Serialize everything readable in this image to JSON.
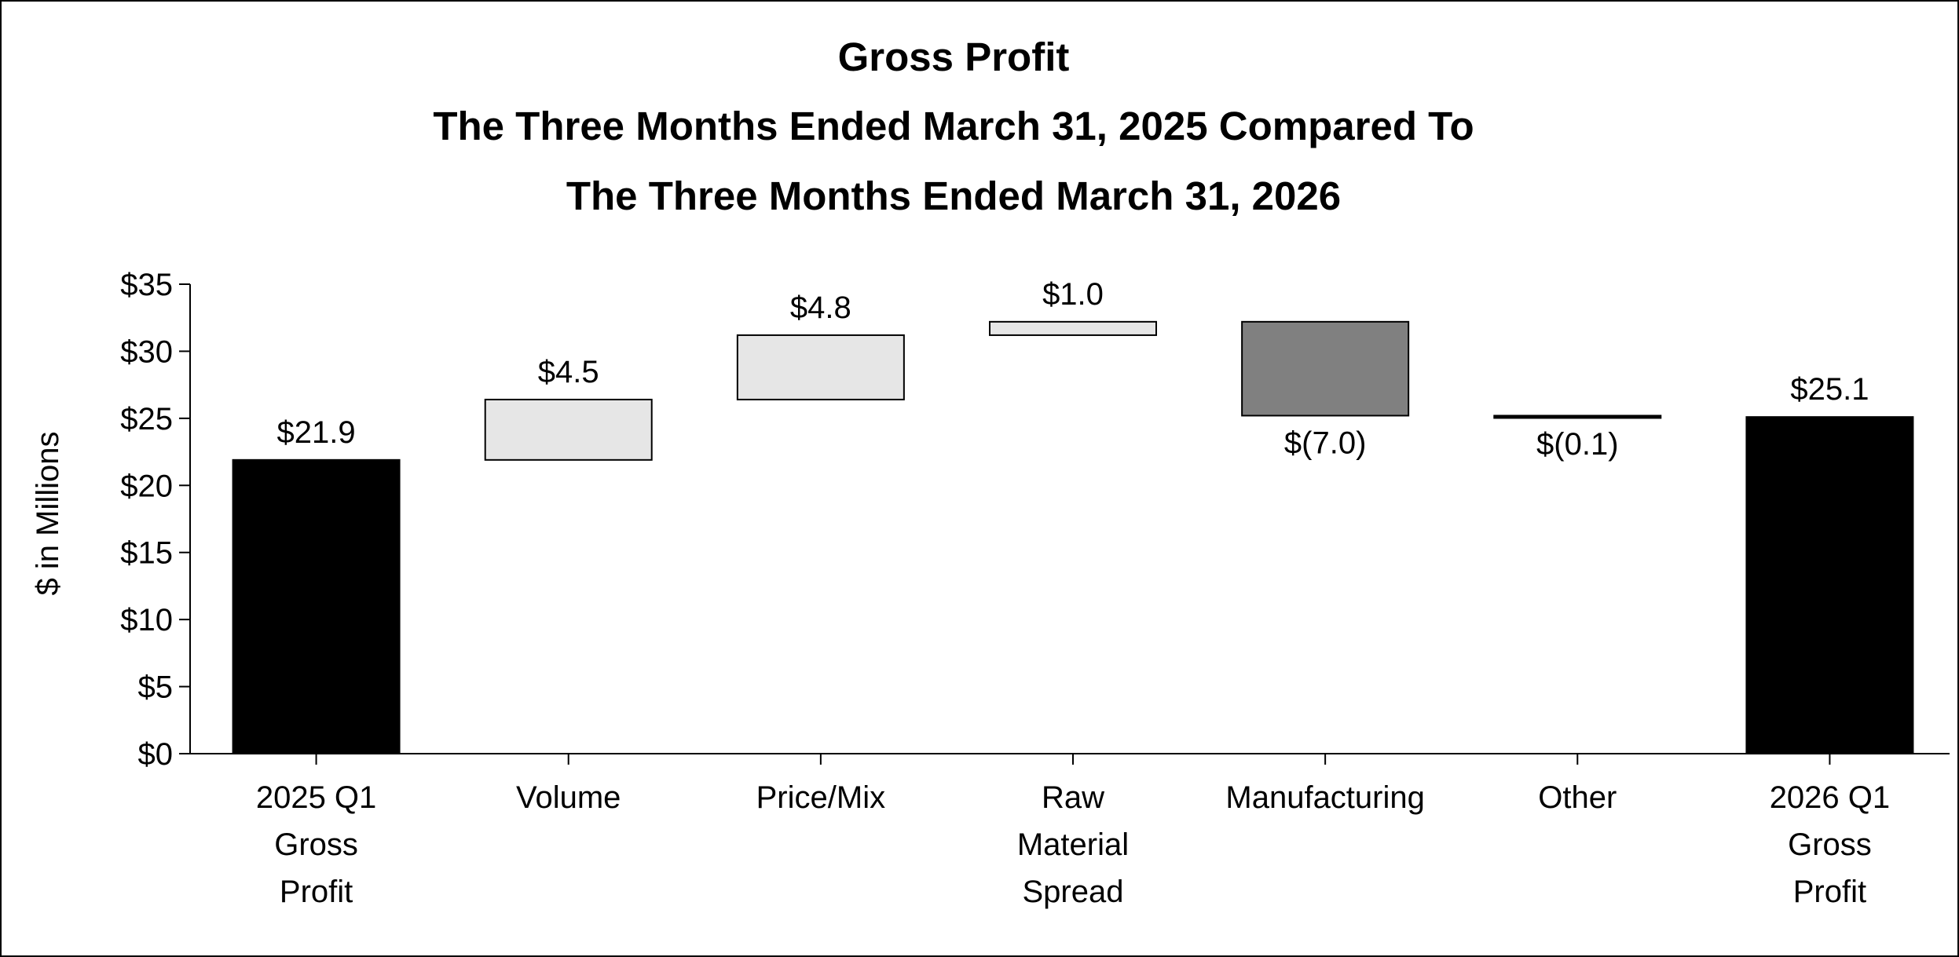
{
  "chart_data": {
    "type": "waterfall",
    "title_lines": [
      "Gross Profit",
      "The Three Months Ended March 31, 2025 Compared To",
      "The Three Months Ended March 31, 2026"
    ],
    "xlabel": "",
    "ylabel": "$ in Millions",
    "ylim": [
      0,
      35
    ],
    "y_ticks": [
      0,
      5,
      10,
      15,
      20,
      25,
      30,
      35
    ],
    "y_tick_labels": [
      "$0",
      "$5",
      "$10",
      "$15",
      "$20",
      "$25",
      "$30",
      "$35"
    ],
    "grid": false,
    "legend": "none",
    "categories": [
      [
        "2025 Q1",
        "Gross",
        "Profit"
      ],
      [
        "Volume"
      ],
      [
        "Price/Mix"
      ],
      [
        "Raw",
        "Material",
        "Spread"
      ],
      [
        "Manufacturing"
      ],
      [
        "Other"
      ],
      [
        "2026 Q1",
        "Gross",
        "Profit"
      ]
    ],
    "bars": [
      {
        "kind": "total",
        "base": 0,
        "value": 21.9,
        "label": "$21.9",
        "color": "#000000"
      },
      {
        "kind": "increase",
        "base": 21.9,
        "value": 4.5,
        "label": "$4.5",
        "color": "#e6e6e6"
      },
      {
        "kind": "increase",
        "base": 26.4,
        "value": 4.8,
        "label": "$4.8",
        "color": "#e6e6e6"
      },
      {
        "kind": "increase",
        "base": 31.2,
        "value": 1.0,
        "label": "$1.0",
        "color": "#e6e6e6"
      },
      {
        "kind": "decrease",
        "base": 32.2,
        "value": -7.0,
        "label": "$(7.0)",
        "color": "#808080"
      },
      {
        "kind": "decrease",
        "base": 25.2,
        "value": -0.1,
        "label": "$(0.1)",
        "color": "#000000"
      },
      {
        "kind": "total",
        "base": 0,
        "value": 25.1,
        "label": "$25.1",
        "color": "#000000"
      }
    ]
  }
}
